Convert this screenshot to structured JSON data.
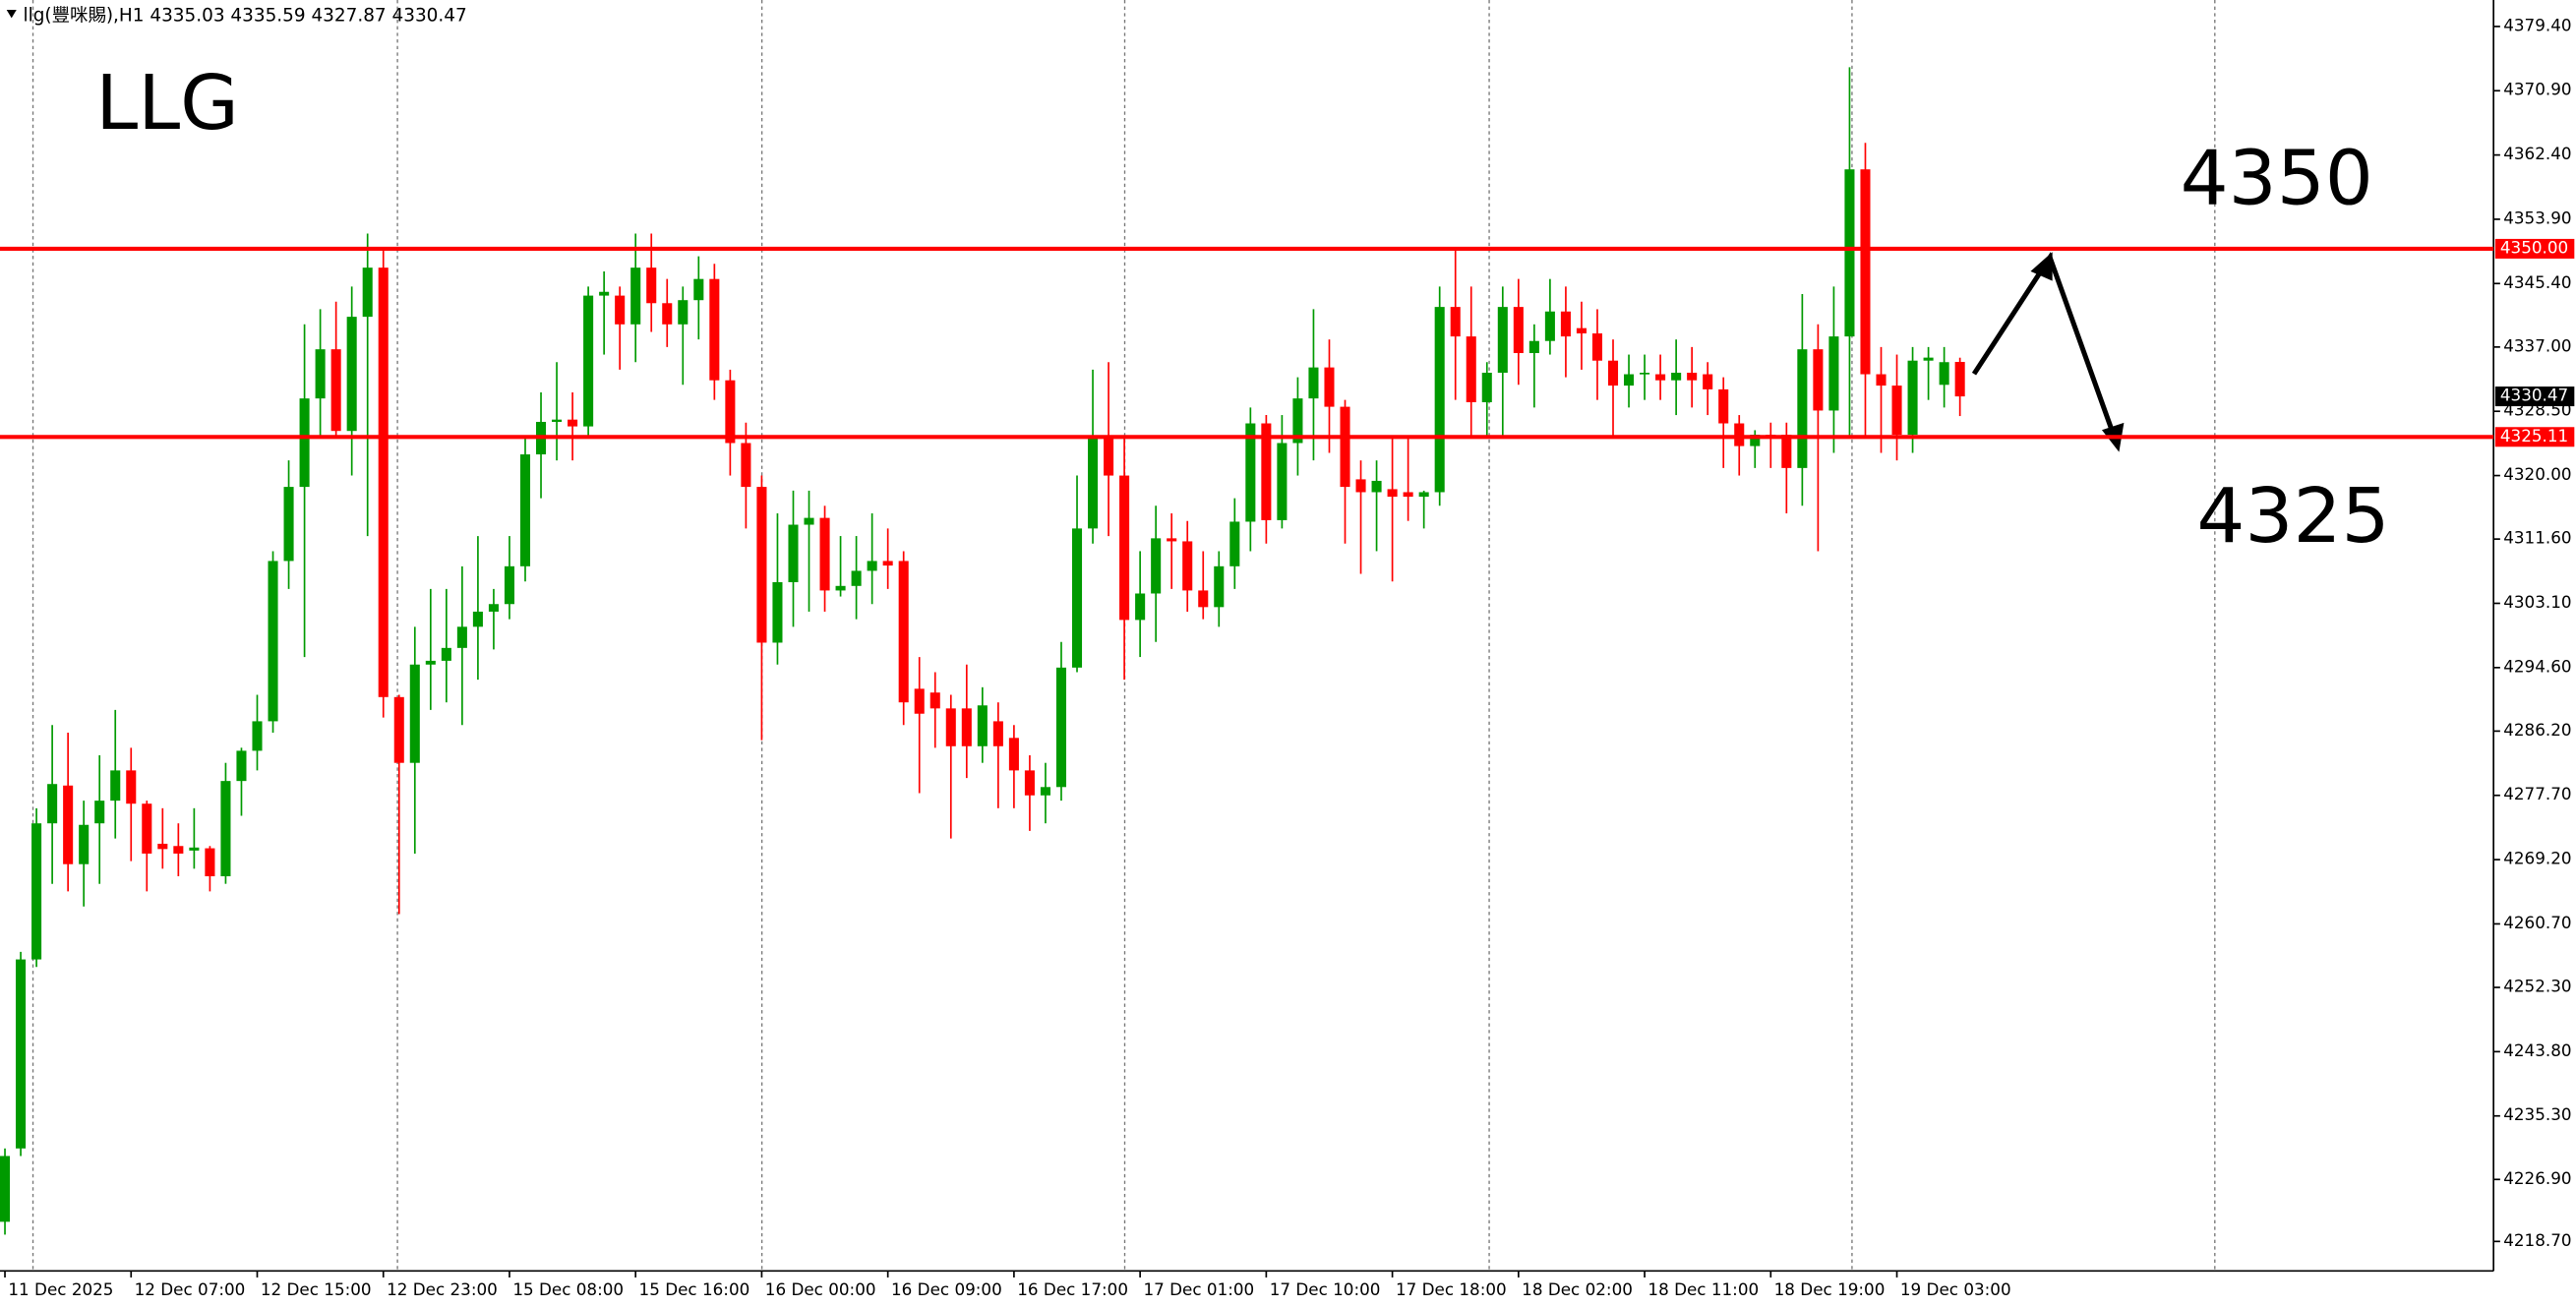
{
  "chart_data": {
    "type": "candlestick",
    "header": "llg(豐咪賜),H1  4335.03 4335.59 4327.87 4330.47",
    "annotations": [
      "LLG",
      "4350",
      "4325"
    ],
    "up_color": "#009a00",
    "down_color": "#ff0000",
    "level_color": "#ff0000",
    "levels": [
      {
        "value": 4350,
        "label": "4350.00"
      },
      {
        "value": 4325.11,
        "label": "4325.11"
      }
    ],
    "ylim": [
      4214.8,
      4382.9
    ],
    "yticks": [
      {
        "value": 4379.4,
        "label": "4379.40"
      },
      {
        "value": 4370.9,
        "label": "4370.90"
      },
      {
        "value": 4362.4,
        "label": "4362.40"
      },
      {
        "value": 4353.9,
        "label": "4353.90"
      },
      {
        "value": 4345.4,
        "label": "4345.40"
      },
      {
        "value": 4337,
        "label": "4337.00"
      },
      {
        "value": 4328.5,
        "label": "4328.50"
      },
      {
        "value": 4320,
        "label": "4320.00"
      },
      {
        "value": 4311.6,
        "label": "4311.60"
      },
      {
        "value": 4303.1,
        "label": "4303.10"
      },
      {
        "value": 4294.6,
        "label": "4294.60"
      },
      {
        "value": 4286.2,
        "label": "4286.20"
      },
      {
        "value": 4277.7,
        "label": "4277.70"
      },
      {
        "value": 4269.2,
        "label": "4269.20"
      },
      {
        "value": 4260.7,
        "label": "4260.70"
      },
      {
        "value": 4252.3,
        "label": "4252.30"
      },
      {
        "value": 4243.8,
        "label": "4243.80"
      },
      {
        "value": 4235.3,
        "label": "4235.30"
      },
      {
        "value": 4226.9,
        "label": "4226.90"
      },
      {
        "value": 4218.7,
        "label": "4218.70"
      }
    ],
    "categories": [
      "11 Dec 2025",
      null,
      null,
      null,
      null,
      null,
      null,
      null,
      "12 Dec 07:00",
      null,
      null,
      null,
      null,
      null,
      null,
      null,
      "12 Dec 15:00",
      null,
      null,
      null,
      null,
      null,
      null,
      null,
      "12 Dec 23:00",
      null,
      null,
      null,
      null,
      null,
      null,
      null,
      "15 Dec 08:00",
      null,
      null,
      null,
      null,
      null,
      null,
      null,
      "15 Dec 16:00",
      null,
      null,
      null,
      null,
      null,
      null,
      null,
      "16 Dec 00:00",
      null,
      null,
      null,
      null,
      null,
      null,
      null,
      "16 Dec 09:00",
      null,
      null,
      null,
      null,
      null,
      null,
      null,
      "16 Dec 17:00",
      null,
      null,
      null,
      null,
      null,
      null,
      null,
      "17 Dec 01:00",
      null,
      null,
      null,
      null,
      null,
      null,
      null,
      "17 Dec 10:00",
      null,
      null,
      null,
      null,
      null,
      null,
      null,
      "17 Dec 18:00",
      null,
      null,
      null,
      null,
      null,
      null,
      null,
      "18 Dec 02:00",
      null,
      null,
      null,
      null,
      null,
      null,
      null,
      "18 Dec 11:00",
      null,
      null,
      null,
      null,
      null,
      null,
      null,
      "18 Dec 19:00",
      null,
      null,
      null,
      null,
      null,
      null,
      null,
      "19 Dec 03:00",
      null,
      null,
      null,
      null
    ],
    "open": [
      4221.3,
      4231,
      4256,
      4274,
      4279,
      4268.6,
      4274,
      4277,
      4281,
      4276.6,
      4271.3,
      4271,
      4270.4,
      4270.7,
      4267,
      4279.6,
      4283.6,
      4287.5,
      4308.7,
      4318.5,
      4330.2,
      4336.7,
      4325.9,
      4341,
      4347.5,
      4290.7,
      4282,
      4295,
      4295.5,
      4297.2,
      4300,
      4302,
      4303,
      4308,
      4322.8,
      4327.1,
      4327.4,
      4326.5,
      4343.8,
      4343.8,
      4340,
      4347.5,
      4342.8,
      4340,
      4343.2,
      4346,
      4332.6,
      4324.3,
      4318.5,
      4297.9,
      4305.9,
      4313.5,
      4314.4,
      4304.8,
      4305.4,
      4307.4,
      4308.7,
      4308.7,
      4291.8,
      4291.3,
      4289.2,
      4289.2,
      4284.2,
      4287.5,
      4285.3,
      4281,
      4277.7,
      4278.8,
      4294.6,
      4313,
      4325,
      4320,
      4300.9,
      4304.4,
      4311.7,
      4311.3,
      4304.8,
      4302.6,
      4308,
      4313.9,
      4326.9,
      4314.1,
      4324.3,
      4330.2,
      4334.3,
      4329.1,
      4319.5,
      4317.8,
      4318.2,
      4317.8,
      4317.2,
      4317.8,
      4342.3,
      4338.4,
      4329.7,
      4333.6,
      4342.3,
      4336.2,
      4337.8,
      4341.7,
      4339.5,
      4338.8,
      4335.2,
      4331.9,
      4333.4,
      4333.4,
      4332.6,
      4333.6,
      4333.4,
      4331.4,
      4326.9,
      4323.9,
      4325.4,
      4325.4,
      4321,
      4336.7,
      4328.6,
      4338.4,
      4360.5,
      4333.4,
      4331.9,
      4325.4,
      4335.2,
      4332,
      4335.03
    ],
    "high": [
      4231,
      4257,
      4276,
      4287,
      4286,
      4277,
      4283,
      4289,
      4284,
      4277,
      4276,
      4274,
      4276,
      4271,
      4282,
      4284,
      4291,
      4310,
      4322,
      4340,
      4342,
      4343,
      4345,
      4352,
      4350,
      4291,
      4300,
      4305,
      4305,
      4308,
      4312,
      4305,
      4312,
      4325,
      4331,
      4335,
      4331,
      4345,
      4347,
      4345,
      4352,
      4352,
      4346,
      4345,
      4349,
      4348,
      4334,
      4327,
      4320,
      4315,
      4318,
      4318,
      4316,
      4312,
      4312,
      4315,
      4313,
      4310,
      4296,
      4294,
      4291,
      4295,
      4292,
      4290,
      4287,
      4283,
      4282,
      4298,
      4320,
      4334,
      4335,
      4325,
      4310,
      4316,
      4315,
      4314,
      4310,
      4310,
      4317,
      4329,
      4328,
      4328,
      4333,
      4342,
      4338,
      4330,
      4322,
      4322,
      4325,
      4325,
      4318,
      4345,
      4350,
      4345,
      4335,
      4345,
      4346,
      4340,
      4346,
      4345,
      4343,
      4342,
      4338,
      4336,
      4336,
      4336,
      4338,
      4337,
      4335,
      4333,
      4328,
      4326,
      4327,
      4327,
      4344,
      4340,
      4345,
      4374,
      4364,
      4337,
      4336,
      4337,
      4337,
      4337,
      4335.59
    ],
    "low": [
      4219.6,
      4230,
      4255,
      4266,
      4265,
      4263,
      4266,
      4272,
      4269,
      4265,
      4268,
      4267,
      4268,
      4265,
      4266,
      4275,
      4281,
      4286,
      4305,
      4296,
      4325,
      4325,
      4320,
      4312,
      4288,
      4262,
      4270,
      4289,
      4290,
      4287,
      4293,
      4297,
      4301,
      4306,
      4317,
      4322,
      4322,
      4325,
      4336,
      4334,
      4335,
      4339,
      4337,
      4332,
      4338,
      4330,
      4320,
      4313,
      4285,
      4295,
      4300,
      4302,
      4302,
      4304,
      4301,
      4303,
      4305,
      4287,
      4278,
      4284,
      4272,
      4280,
      4282,
      4276,
      4276,
      4273,
      4274,
      4277,
      4294,
      4311,
      4312,
      4293,
      4296,
      4298,
      4305,
      4302,
      4301,
      4300,
      4305,
      4310,
      4311,
      4313,
      4320,
      4322,
      4323,
      4311,
      4307,
      4310,
      4306,
      4314,
      4313,
      4316,
      4330,
      4325,
      4325,
      4325,
      4332,
      4329,
      4336,
      4333,
      4334,
      4330,
      4325,
      4329,
      4330,
      4330,
      4328,
      4329,
      4328,
      4321,
      4320,
      4321,
      4321,
      4315,
      4316,
      4310,
      4323,
      4325,
      4325,
      4323,
      4322,
      4323,
      4330,
      4329,
      4327.87
    ],
    "close": [
      4230,
      4256,
      4274,
      4279.2,
      4268.6,
      4273.8,
      4277,
      4281,
      4276.6,
      4270,
      4270.6,
      4270,
      4270.8,
      4267,
      4279.6,
      4283.6,
      4287.5,
      4308.7,
      4318.5,
      4330.2,
      4336.7,
      4325.9,
      4341,
      4347.5,
      4290.7,
      4282,
      4295,
      4295.5,
      4297.2,
      4300,
      4302,
      4303,
      4308,
      4322.8,
      4327.1,
      4327.4,
      4326.5,
      4343.8,
      4344.3,
      4340,
      4347.5,
      4342.8,
      4340,
      4343.2,
      4346,
      4332.6,
      4324.3,
      4318.5,
      4297.9,
      4305.9,
      4313.5,
      4314.4,
      4304.8,
      4305.4,
      4307.4,
      4308.7,
      4308.1,
      4290,
      4288.5,
      4289.2,
      4284.2,
      4284.2,
      4289.6,
      4284.2,
      4281,
      4277.7,
      4278.8,
      4294.6,
      4313,
      4325,
      4320,
      4300.9,
      4304.4,
      4311.7,
      4311.3,
      4304.8,
      4302.6,
      4308,
      4313.9,
      4326.9,
      4314.1,
      4324.3,
      4330.2,
      4334.3,
      4329.1,
      4318.5,
      4317.8,
      4319.3,
      4317.2,
      4317.2,
      4317.8,
      4342.3,
      4338.4,
      4329.7,
      4333.6,
      4342.3,
      4336.2,
      4337.8,
      4341.7,
      4338.4,
      4338.8,
      4335.2,
      4331.9,
      4333.4,
      4333.6,
      4332.6,
      4333.6,
      4332.6,
      4331.4,
      4326.9,
      4323.9,
      4325.4,
      4325,
      4321,
      4336.7,
      4328.6,
      4338.4,
      4360.5,
      4333.4,
      4331.9,
      4325.4,
      4335.2,
      4335.6,
      4335,
      4330.47
    ]
  }
}
